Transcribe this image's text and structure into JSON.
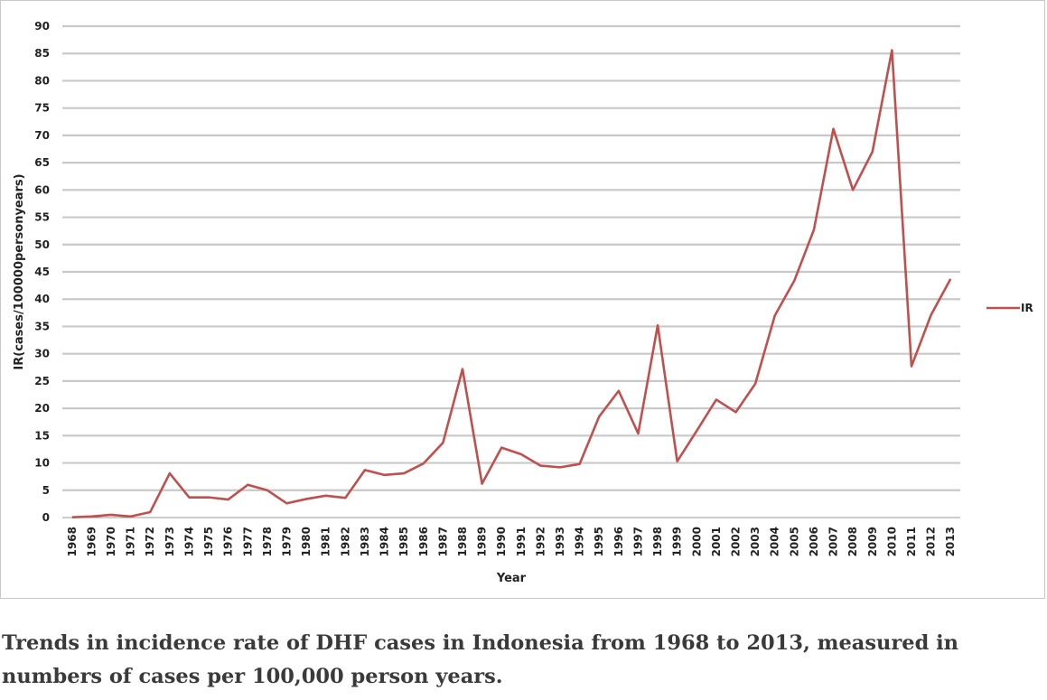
{
  "caption": "Trends in incidence rate of DHF cases in Indonesia from 1968 to 2013, measured in numbers of cases per 100,000 person years.",
  "chart_data": {
    "type": "line",
    "title": "",
    "xlabel": "Year",
    "ylabel": "IR(cases/100000personyears)",
    "ylim": [
      0,
      90
    ],
    "ytick_step": 5,
    "grid": true,
    "legend_position": "right",
    "categories": [
      "1968",
      "1969",
      "1970",
      "1971",
      "1972",
      "1973",
      "1974",
      "1975",
      "1976",
      "1977",
      "1978",
      "1979",
      "1980",
      "1981",
      "1982",
      "1983",
      "1984",
      "1985",
      "1986",
      "1987",
      "1988",
      "1989",
      "1990",
      "1991",
      "1992",
      "1993",
      "1994",
      "1995",
      "1996",
      "1997",
      "1998",
      "1999",
      "2000",
      "2001",
      "2002",
      "2003",
      "2004",
      "2005",
      "2006",
      "2007",
      "2008",
      "2009",
      "2010",
      "2011",
      "2012",
      "2013"
    ],
    "series": [
      {
        "name": "IR",
        "color": "#c0504d",
        "values": [
          0.05,
          0.2,
          0.5,
          0.2,
          1.0,
          8.1,
          3.7,
          3.7,
          3.3,
          6.0,
          5.0,
          2.6,
          3.4,
          4.0,
          3.6,
          8.7,
          7.8,
          8.1,
          9.9,
          13.7,
          27.2,
          6.2,
          12.8,
          11.6,
          9.5,
          9.2,
          9.8,
          18.5,
          23.2,
          15.4,
          35.2,
          10.3,
          15.9,
          21.6,
          19.3,
          24.5,
          37.0,
          43.4,
          52.7,
          71.2,
          60.0,
          67.0,
          85.6,
          27.7,
          37.1,
          43.7
        ]
      }
    ]
  }
}
